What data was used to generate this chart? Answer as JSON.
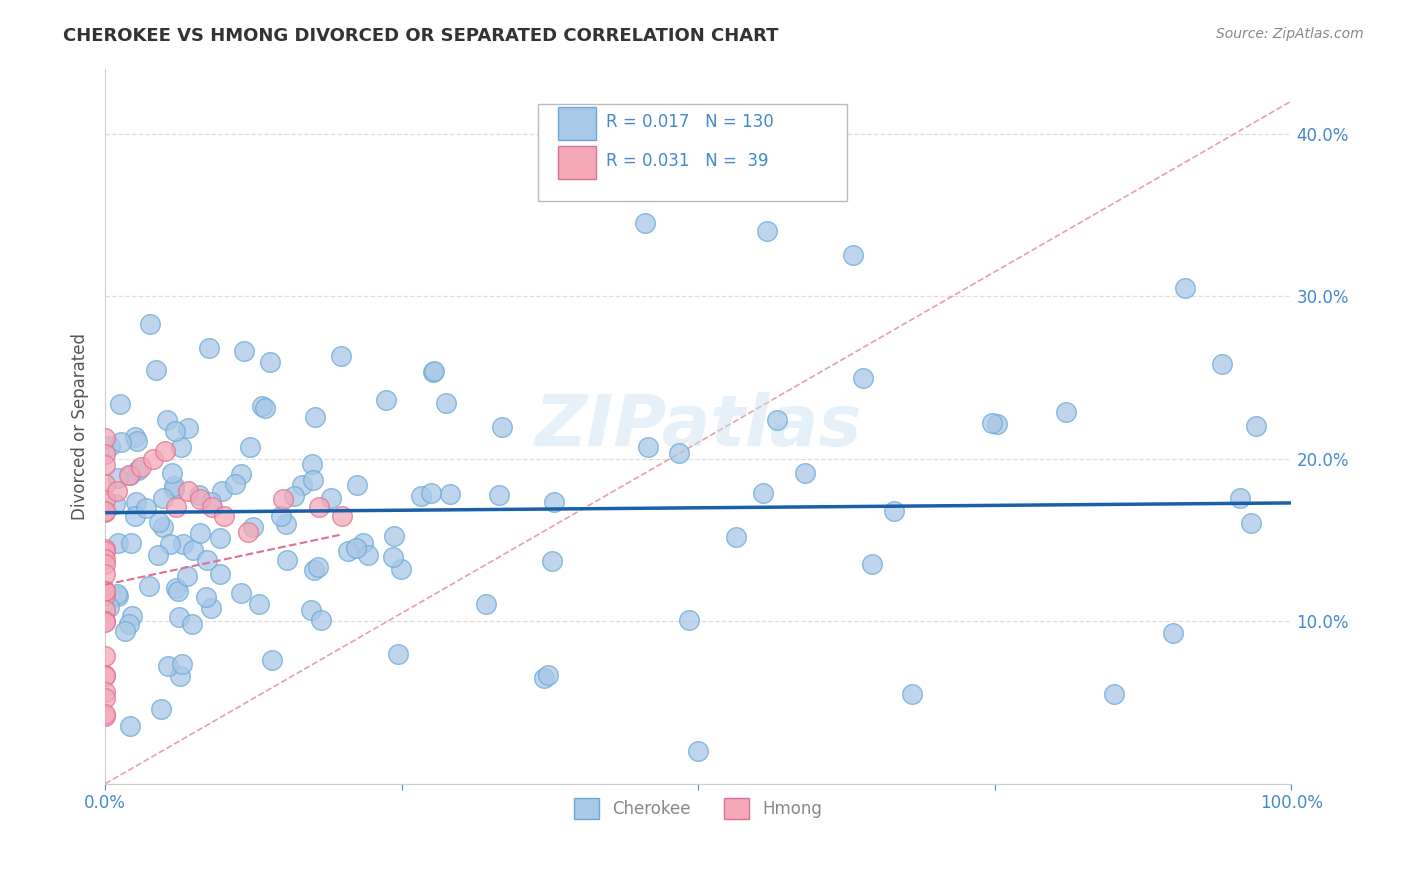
{
  "title": "CHEROKEE VS HMONG DIVORCED OR SEPARATED CORRELATION CHART",
  "source": "Source: ZipAtlas.com",
  "ylabel": "Divorced or Separated",
  "xlabel": "",
  "xlim": [
    0.0,
    1.0
  ],
  "ylim": [
    0.0,
    0.44
  ],
  "ytick_vals": [
    0.0,
    0.1,
    0.2,
    0.3,
    0.4
  ],
  "ytick_labels": [
    "",
    "10.0%",
    "20.0%",
    "30.0%",
    "40.0%"
  ],
  "xtick_vals": [
    0.0,
    0.25,
    0.5,
    0.75,
    1.0
  ],
  "xtick_labels": [
    "0.0%",
    "",
    "",
    "",
    "100.0%"
  ],
  "cherokee_color": "#a8c8e8",
  "hmong_color": "#f4a8b8",
  "cherokee_edge": "#6aaad4",
  "hmong_edge": "#e07090",
  "trend_color_cherokee": "#1a5fa8",
  "trend_color_hmong": "#e07090",
  "diagonal_color": "#e8a0a8",
  "watermark": "ZIPatlas",
  "legend_cherokee_R": "0.017",
  "legend_cherokee_N": "130",
  "legend_hmong_R": "0.031",
  "legend_hmong_N": "39",
  "background_color": "#ffffff",
  "grid_color": "#dddddd",
  "tick_color": "#4488cc",
  "label_color": "#888888"
}
